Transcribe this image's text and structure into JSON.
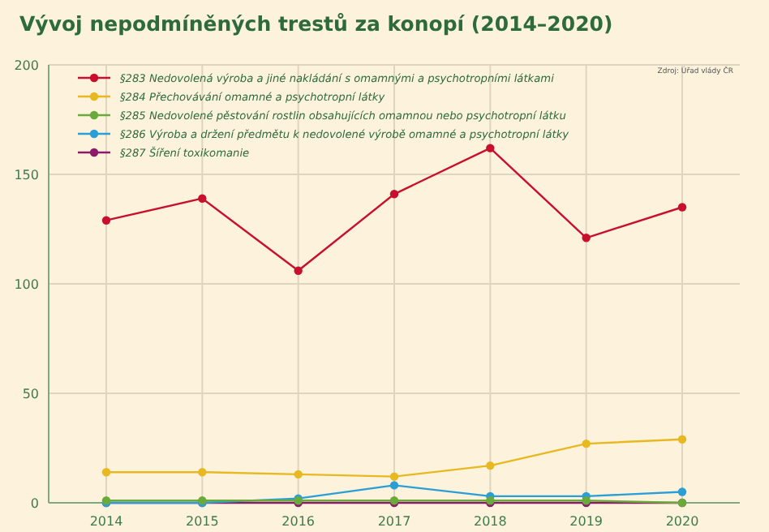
{
  "chart_data": {
    "type": "line",
    "title": "Vývoj nepodmíněných trestů za konopí (2014–2020)",
    "annotations": [
      "Zdroj: Úřad vlády ČR"
    ],
    "categories": [
      "2014",
      "2015",
      "2016",
      "2017",
      "2018",
      "2019",
      "2020"
    ],
    "series": [
      {
        "name": "§283 Nedovolená výroba a jiné nakládání s omamnými a psychotropními látkami",
        "color": "#c8102e",
        "values": [
          129,
          139,
          106,
          141,
          162,
          121,
          135
        ]
      },
      {
        "name": "§284 Přechovávání omamné a psychotropní látky",
        "color": "#e8b820",
        "values": [
          14,
          14,
          13,
          12,
          17,
          27,
          29
        ]
      },
      {
        "name": "§285 Nedovolené pěstování rostlin obsahujících omamnou nebo psychotropní látku",
        "color": "#6aaa3a",
        "values": [
          1,
          1,
          1,
          1,
          1,
          1,
          0
        ]
      },
      {
        "name": "§286 Výroba a držení předmětu k nedovolené výrobě omamné a psychotropní látky",
        "color": "#2a9fd6",
        "values": [
          0,
          0,
          2,
          8,
          3,
          3,
          5
        ]
      },
      {
        "name": "§287 Šíření toxikomanie",
        "color": "#8b1a6b",
        "values": [
          0,
          0,
          0,
          0,
          0,
          0,
          0
        ]
      }
    ],
    "ylim": [
      0,
      200
    ],
    "yticks": [
      0,
      50,
      100,
      150,
      200
    ],
    "grid": true,
    "legend": "top left",
    "marker": "circle",
    "line_style": "solid"
  }
}
